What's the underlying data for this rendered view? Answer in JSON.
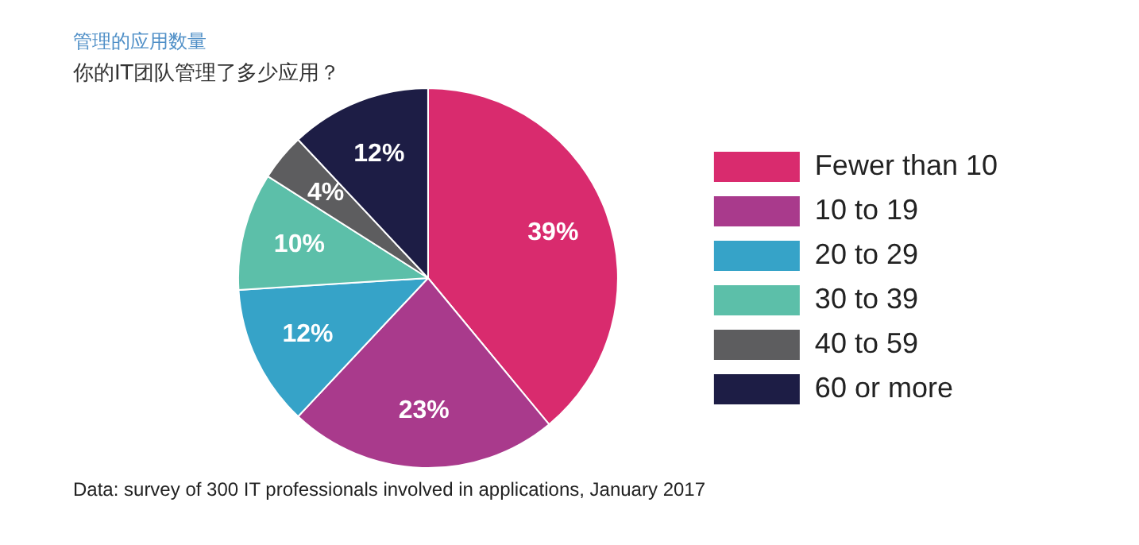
{
  "chart_data": {
    "type": "pie",
    "title": "管理的应用数量",
    "subtitle": "你的IT团队管理了多少应用？",
    "categories": [
      "Fewer than 10",
      "10 to 19",
      "20 to 29",
      "30 to 39",
      "40 to 59",
      "60 or more"
    ],
    "values": [
      39,
      23,
      12,
      10,
      4,
      12
    ],
    "colors": [
      "#d92b6e",
      "#a93a8c",
      "#36a3c8",
      "#5cbfa9",
      "#5d5d5f",
      "#1d1d45"
    ],
    "value_labels": [
      "39%",
      "23%",
      "12%",
      "10%",
      "4%",
      "12%"
    ],
    "legend": "right",
    "annotations": [
      "Data: survey of 300 IT professionals involved in applications, January 2017"
    ]
  }
}
